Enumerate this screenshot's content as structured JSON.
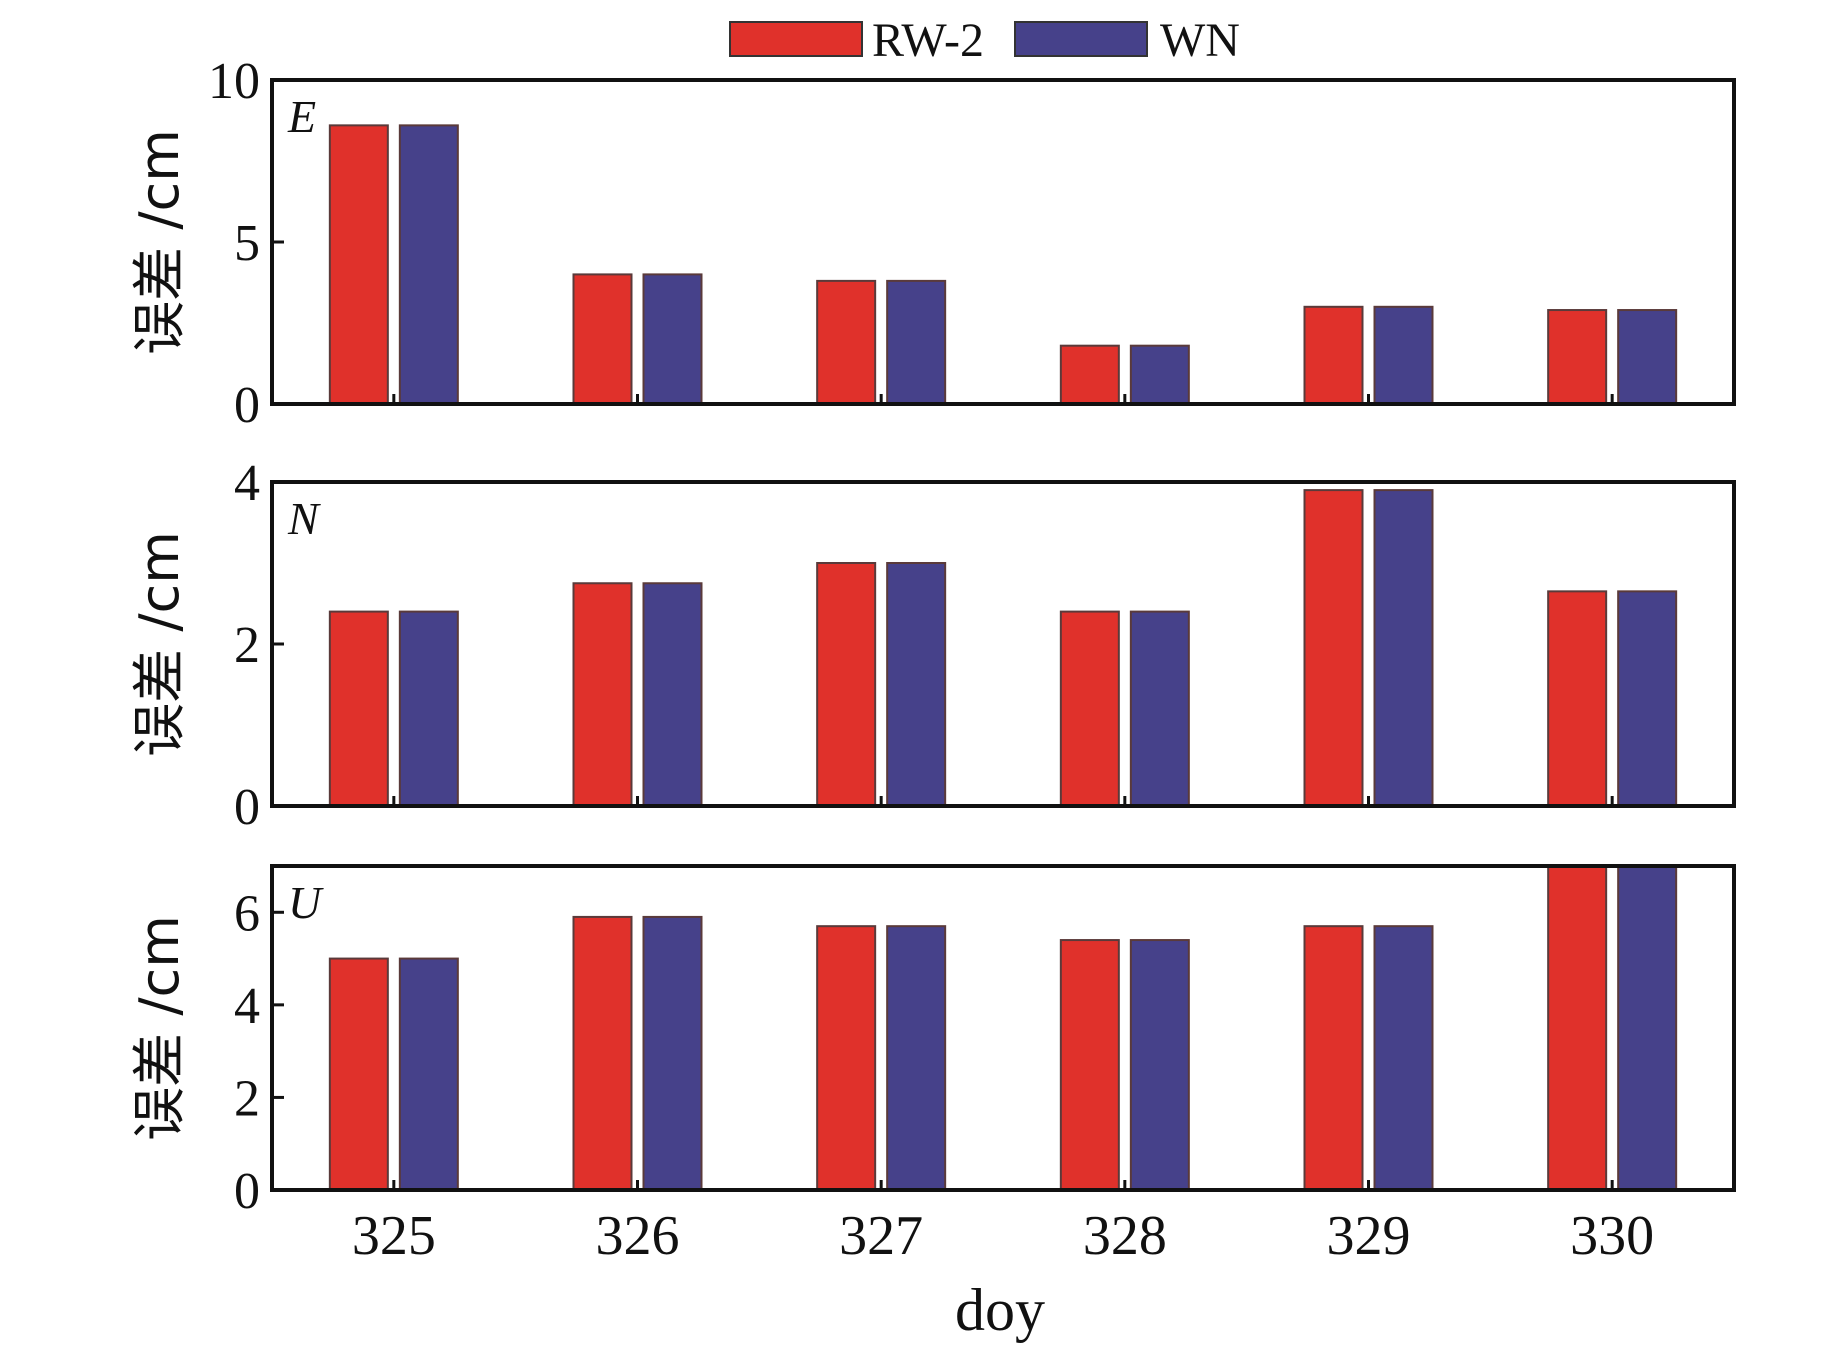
{
  "chart_data": {
    "type": "bar",
    "xlabel": "doy",
    "categories": [
      "325",
      "326",
      "327",
      "328",
      "329",
      "330"
    ],
    "legend": [
      {
        "name": "RW-2",
        "color": "#e0312b"
      },
      {
        "name": "WN",
        "color": "#46418a"
      }
    ],
    "panels": [
      {
        "label": "E",
        "ylabel": "误差 /cm",
        "ylim": [
          0,
          10
        ],
        "yticks": [
          "0",
          "5",
          "10"
        ],
        "series": [
          {
            "name": "RW-2",
            "values": [
              8.6,
              4.0,
              3.8,
              1.8,
              3.0,
              2.9
            ]
          },
          {
            "name": "WN",
            "values": [
              8.6,
              4.0,
              3.8,
              1.8,
              3.0,
              2.9
            ]
          }
        ]
      },
      {
        "label": "N",
        "ylabel": "误差 /cm",
        "ylim": [
          0,
          4
        ],
        "yticks": [
          "0",
          "2",
          "4"
        ],
        "series": [
          {
            "name": "RW-2",
            "values": [
              2.4,
              2.75,
              3.0,
              2.4,
              3.9,
              2.65
            ]
          },
          {
            "name": "WN",
            "values": [
              2.4,
              2.75,
              3.0,
              2.4,
              3.9,
              2.65
            ]
          }
        ]
      },
      {
        "label": "U",
        "ylabel": "误差 /cm",
        "ylim": [
          0,
          7
        ],
        "yticks": [
          "0",
          "2",
          "4",
          "6"
        ],
        "series": [
          {
            "name": "RW-2",
            "values": [
              5.0,
              5.9,
              5.7,
              5.4,
              5.7,
              7.0
            ]
          },
          {
            "name": "WN",
            "values": [
              5.0,
              5.9,
              5.7,
              5.4,
              5.7,
              7.0
            ]
          }
        ]
      }
    ]
  }
}
